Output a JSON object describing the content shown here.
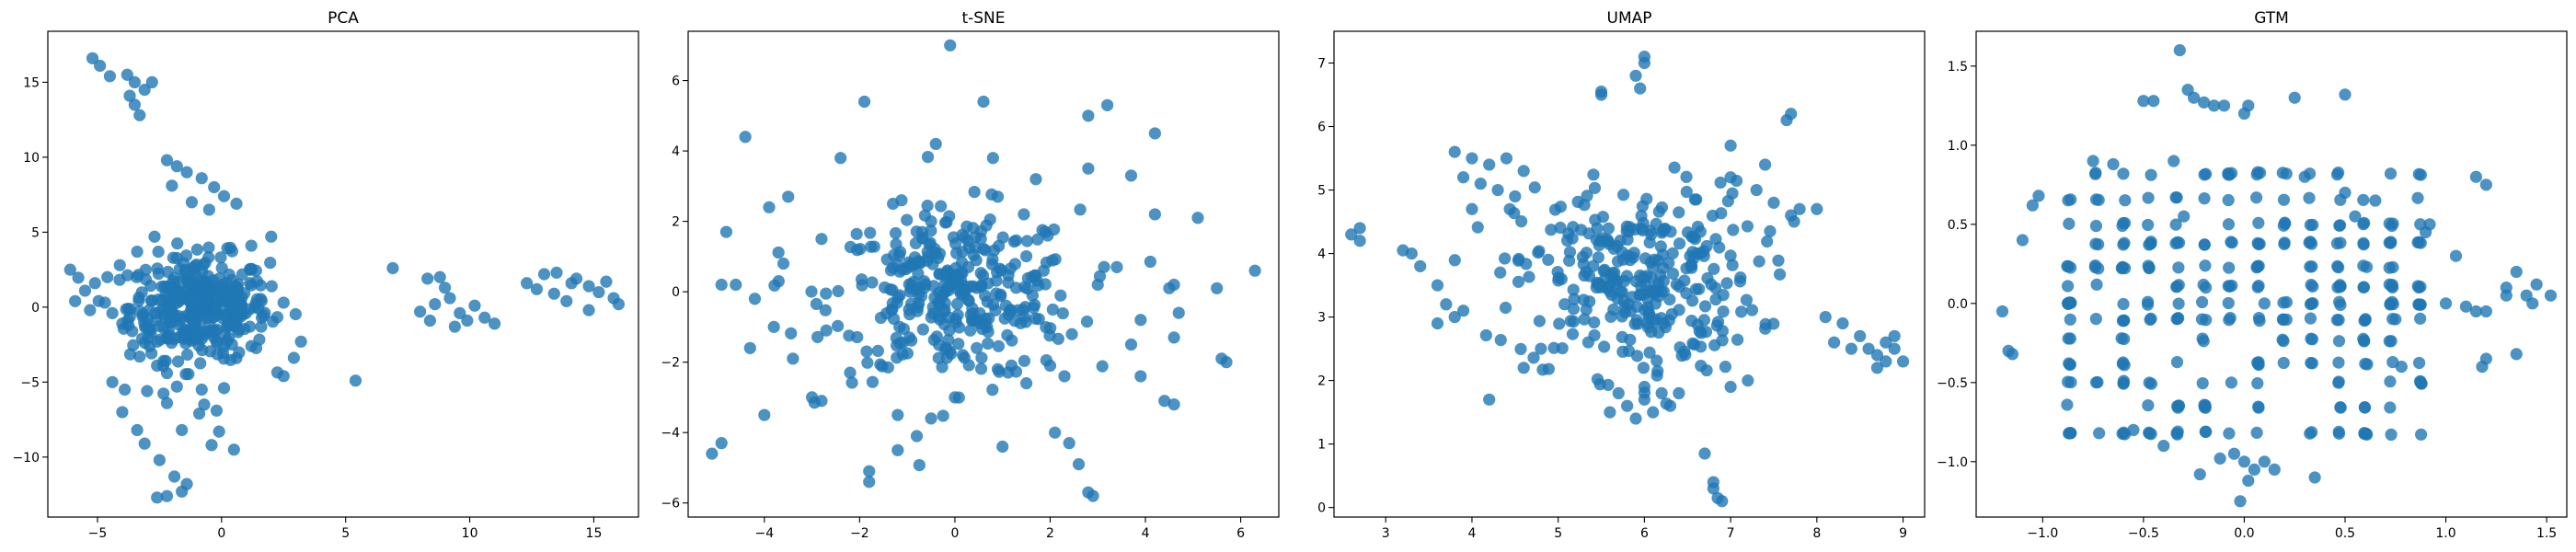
{
  "figure": {
    "point_color": "#1f77b4",
    "point_opacity": 0.8
  },
  "chart_data": [
    {
      "type": "scatter",
      "title": "PCA",
      "xlim": [
        -7,
        16.8
      ],
      "ylim": [
        -14,
        18.4
      ],
      "xticks": [
        -5,
        0,
        5,
        10,
        15
      ],
      "yticks": [
        -10,
        -5,
        0,
        5,
        10,
        15
      ],
      "points": [
        [
          -5.2,
          16.6
        ],
        [
          -4.9,
          16.1
        ],
        [
          -4.5,
          15.4
        ],
        [
          -3.8,
          15.5
        ],
        [
          -3.5,
          15.0
        ],
        [
          -2.8,
          15.0
        ],
        [
          -3.1,
          14.5
        ],
        [
          -3.7,
          14.1
        ],
        [
          -3.5,
          13.5
        ],
        [
          -3.3,
          12.8
        ],
        [
          -2.2,
          9.8
        ],
        [
          -1.8,
          9.4
        ],
        [
          -1.4,
          9.0
        ],
        [
          -0.8,
          8.6
        ],
        [
          -0.3,
          8.0
        ],
        [
          0.1,
          7.4
        ],
        [
          0.6,
          6.9
        ],
        [
          -2.0,
          8.1
        ],
        [
          -1.2,
          7.0
        ],
        [
          -0.5,
          6.5
        ],
        [
          1.2,
          4.1
        ],
        [
          2.0,
          4.7
        ],
        [
          -2.7,
          4.7
        ],
        [
          -3.4,
          3.7
        ],
        [
          -4.1,
          2.8
        ],
        [
          -4.6,
          2.0
        ],
        [
          -5.1,
          1.6
        ],
        [
          -5.5,
          1.1
        ],
        [
          -6.1,
          2.5
        ],
        [
          -5.9,
          0.4
        ],
        [
          -5.3,
          -0.2
        ],
        [
          -4.7,
          0.3
        ],
        [
          -4.4,
          -0.4
        ],
        [
          -4.0,
          -1.1
        ],
        [
          -3.6,
          -1.6
        ],
        [
          -3.2,
          -2.1
        ],
        [
          -2.9,
          -2.6
        ],
        [
          -3.3,
          -3.3
        ],
        [
          -2.6,
          -3.9
        ],
        [
          -2.2,
          -4.4
        ],
        [
          -3.0,
          -5.6
        ],
        [
          -3.9,
          -5.5
        ],
        [
          -4.4,
          -5.0
        ],
        [
          -4.0,
          -7.0
        ],
        [
          -3.4,
          -8.2
        ],
        [
          -3.1,
          -9.1
        ],
        [
          -2.5,
          -10.2
        ],
        [
          -1.9,
          -11.3
        ],
        [
          -1.4,
          -11.8
        ],
        [
          -2.2,
          -12.6
        ],
        [
          -2.6,
          -12.7
        ],
        [
          -1.6,
          -12.3
        ],
        [
          -1.6,
          -8.2
        ],
        [
          -0.9,
          -7.1
        ],
        [
          -0.4,
          -9.2
        ],
        [
          0.5,
          -9.5
        ],
        [
          -0.1,
          -8.3
        ],
        [
          -0.7,
          -6.5
        ],
        [
          -0.2,
          -6.9
        ],
        [
          0.1,
          -5.4
        ],
        [
          -0.8,
          -5.5
        ],
        [
          -1.8,
          -5.3
        ],
        [
          -2.2,
          -6.4
        ],
        [
          0.6,
          -3.4
        ],
        [
          1.2,
          -2.6
        ],
        [
          1.6,
          -1.3
        ],
        [
          2.5,
          0.3
        ],
        [
          3.2,
          -2.3
        ],
        [
          2.5,
          -4.6
        ],
        [
          5.4,
          -4.9
        ],
        [
          6.9,
          2.6
        ],
        [
          8.3,
          1.9
        ],
        [
          8.8,
          2.0
        ],
        [
          9.0,
          1.3
        ],
        [
          9.2,
          0.6
        ],
        [
          8.6,
          0.2
        ],
        [
          8.0,
          -0.3
        ],
        [
          8.4,
          -0.9
        ],
        [
          9.6,
          -0.4
        ],
        [
          10.2,
          0.1
        ],
        [
          9.9,
          -0.9
        ],
        [
          10.6,
          -0.7
        ],
        [
          11.0,
          -1.1
        ],
        [
          9.4,
          -1.3
        ],
        [
          12.3,
          1.6
        ],
        [
          13.0,
          2.2
        ],
        [
          13.5,
          2.3
        ],
        [
          14.3,
          1.9
        ],
        [
          14.8,
          1.4
        ],
        [
          15.2,
          1.0
        ],
        [
          15.8,
          0.6
        ],
        [
          16.0,
          0.2
        ],
        [
          13.9,
          0.4
        ],
        [
          13.4,
          0.9
        ],
        [
          14.8,
          -0.2
        ],
        [
          12.7,
          1.2
        ],
        [
          14.1,
          1.6
        ],
        [
          15.5,
          1.7
        ]
      ],
      "cluster": {
        "center": [
          -0.9,
          0.0
        ],
        "spread": [
          1.4,
          1.7
        ],
        "count": 360
      }
    },
    {
      "type": "scatter",
      "title": "t-SNE",
      "xlim": [
        -5.6,
        6.8
      ],
      "ylim": [
        -6.4,
        7.4
      ],
      "xticks": [
        -4,
        -2,
        0,
        2,
        4,
        6
      ],
      "yticks": [
        -6,
        -4,
        -2,
        0,
        2,
        4,
        6
      ],
      "points": [
        [
          -0.1,
          7.0
        ],
        [
          0.6,
          5.4
        ],
        [
          -1.9,
          5.4
        ],
        [
          2.8,
          5.0
        ],
        [
          3.2,
          5.3
        ],
        [
          4.2,
          4.5
        ],
        [
          -4.4,
          4.4
        ],
        [
          -0.4,
          4.2
        ],
        [
          0.8,
          3.8
        ],
        [
          -2.4,
          3.8
        ],
        [
          1.7,
          3.2
        ],
        [
          2.8,
          3.5
        ],
        [
          3.7,
          3.3
        ],
        [
          -3.5,
          2.7
        ],
        [
          -3.9,
          2.4
        ],
        [
          4.2,
          2.2
        ],
        [
          5.1,
          2.1
        ],
        [
          -4.8,
          1.7
        ],
        [
          3.0,
          0.2
        ],
        [
          3.4,
          0.7
        ],
        [
          4.5,
          0.1
        ],
        [
          5.5,
          0.1
        ],
        [
          6.3,
          0.6
        ],
        [
          4.7,
          -0.6
        ],
        [
          3.9,
          -0.8
        ],
        [
          3.7,
          -1.5
        ],
        [
          4.6,
          -1.3
        ],
        [
          5.6,
          -1.9
        ],
        [
          5.7,
          -2.0
        ],
        [
          4.4,
          -3.1
        ],
        [
          4.6,
          -3.2
        ],
        [
          2.3,
          -2.4
        ],
        [
          1.5,
          -2.6
        ],
        [
          2.1,
          -4.0
        ],
        [
          2.4,
          -4.3
        ],
        [
          2.6,
          -4.9
        ],
        [
          2.8,
          -5.7
        ],
        [
          2.9,
          -5.8
        ],
        [
          1.0,
          -4.4
        ],
        [
          -0.5,
          -3.6
        ],
        [
          -0.8,
          -4.1
        ],
        [
          -1.2,
          -4.5
        ],
        [
          -1.8,
          -5.1
        ],
        [
          -1.8,
          -5.4
        ],
        [
          -2.8,
          -3.1
        ],
        [
          -3.0,
          -3.0
        ],
        [
          -4.0,
          -3.5
        ],
        [
          -4.9,
          -4.3
        ],
        [
          -5.1,
          -4.6
        ],
        [
          -4.3,
          -1.6
        ],
        [
          -3.4,
          -1.9
        ],
        [
          -3.7,
          0.3
        ],
        [
          -4.9,
          0.2
        ],
        [
          -4.2,
          -0.2
        ],
        [
          -3.6,
          0.8
        ],
        [
          -2.7,
          -1.1
        ],
        [
          -2.2,
          -2.3
        ],
        [
          -1.2,
          -3.5
        ],
        [
          0.0,
          -3.0
        ],
        [
          0.9,
          -2.2
        ],
        [
          -1.3,
          2.5
        ],
        [
          0.9,
          2.7
        ],
        [
          -2.8,
          1.5
        ],
        [
          1.9,
          1.7
        ],
        [
          -0.5,
          2.0
        ],
        [
          4.6,
          0.2
        ],
        [
          -4.6,
          0.2
        ],
        [
          2.0,
          -2.1
        ],
        [
          3.9,
          -2.4
        ],
        [
          -3.8,
          -1.0
        ]
      ],
      "cluster": {
        "center": [
          0.0,
          -0.1
        ],
        "spread": [
          1.3,
          1.2
        ],
        "count": 330
      }
    },
    {
      "type": "scatter",
      "title": "UMAP",
      "xlim": [
        2.4,
        9.25
      ],
      "ylim": [
        -0.15,
        7.5
      ],
      "xticks": [
        3,
        4,
        5,
        6,
        7,
        8,
        9
      ],
      "yticks": [
        0,
        1,
        2,
        3,
        4,
        5,
        6,
        7
      ],
      "points": [
        [
          6.0,
          7.1
        ],
        [
          6.0,
          7.0
        ],
        [
          5.9,
          6.8
        ],
        [
          5.95,
          6.6
        ],
        [
          5.5,
          6.5
        ],
        [
          5.5,
          6.55
        ],
        [
          7.7,
          6.2
        ],
        [
          7.65,
          6.1
        ],
        [
          3.8,
          5.6
        ],
        [
          4.0,
          5.5
        ],
        [
          4.2,
          5.4
        ],
        [
          4.4,
          5.5
        ],
        [
          3.9,
          5.2
        ],
        [
          4.1,
          5.1
        ],
        [
          4.3,
          5.0
        ],
        [
          4.5,
          4.9
        ],
        [
          4.0,
          4.7
        ],
        [
          4.6,
          5.3
        ],
        [
          7.0,
          5.2
        ],
        [
          7.3,
          5.0
        ],
        [
          7.5,
          4.8
        ],
        [
          7.7,
          4.6
        ],
        [
          7.8,
          4.7
        ],
        [
          8.0,
          4.7
        ],
        [
          7.4,
          5.4
        ],
        [
          7.0,
          5.7
        ],
        [
          2.7,
          4.4
        ],
        [
          2.6,
          4.3
        ],
        [
          2.7,
          4.2
        ],
        [
          3.2,
          4.05
        ],
        [
          3.3,
          4.0
        ],
        [
          3.6,
          3.5
        ],
        [
          3.7,
          3.2
        ],
        [
          3.8,
          3.0
        ],
        [
          3.9,
          3.1
        ],
        [
          3.6,
          2.9
        ],
        [
          8.1,
          3.0
        ],
        [
          8.3,
          2.9
        ],
        [
          8.5,
          2.7
        ],
        [
          8.6,
          2.5
        ],
        [
          8.7,
          2.4
        ],
        [
          8.8,
          2.6
        ],
        [
          8.9,
          2.5
        ],
        [
          9.0,
          2.3
        ],
        [
          8.8,
          2.3
        ],
        [
          8.7,
          2.2
        ],
        [
          8.4,
          2.5
        ],
        [
          8.9,
          2.7
        ],
        [
          8.2,
          2.6
        ],
        [
          5.6,
          1.5
        ],
        [
          5.8,
          1.6
        ],
        [
          6.0,
          1.7
        ],
        [
          6.2,
          1.8
        ],
        [
          5.9,
          1.4
        ],
        [
          6.1,
          1.5
        ],
        [
          6.3,
          1.6
        ],
        [
          6.0,
          1.9
        ],
        [
          5.7,
          1.8
        ],
        [
          6.4,
          1.8
        ],
        [
          4.2,
          1.7
        ],
        [
          6.7,
          0.85
        ],
        [
          6.8,
          0.4
        ],
        [
          6.8,
          0.3
        ],
        [
          6.85,
          0.15
        ],
        [
          6.9,
          0.1
        ],
        [
          4.6,
          2.2
        ],
        [
          4.8,
          2.5
        ],
        [
          7.2,
          2.0
        ],
        [
          7.0,
          1.9
        ],
        [
          3.4,
          3.8
        ]
      ],
      "cluster": {
        "center": [
          5.9,
          3.6
        ],
        "spread": [
          0.7,
          0.75
        ],
        "count": 310
      }
    },
    {
      "type": "scatter",
      "title": "GTM",
      "xlim": [
        -1.33,
        1.6
      ],
      "ylim": [
        -1.35,
        1.72
      ],
      "xticks": [
        -1.0,
        -0.5,
        0.0,
        0.5,
        1.0,
        1.5
      ],
      "yticks": [
        -1.0,
        -0.5,
        0.0,
        0.5,
        1.0,
        1.5
      ],
      "grid": {
        "xs": [
          -0.87,
          -0.73,
          -0.6,
          -0.47,
          -0.33,
          -0.2,
          -0.07,
          0.07,
          0.2,
          0.33,
          0.47,
          0.6,
          0.73,
          0.87
        ],
        "ys": [
          -0.82,
          -0.65,
          -0.5,
          -0.38,
          -0.23,
          -0.1,
          0.0,
          0.11,
          0.23,
          0.38,
          0.5,
          0.66,
          0.82
        ],
        "count": 300
      },
      "points": [
        [
          -0.32,
          1.6
        ],
        [
          -0.28,
          1.35
        ],
        [
          -0.25,
          1.3
        ],
        [
          -0.2,
          1.27
        ],
        [
          -0.15,
          1.25
        ],
        [
          -0.1,
          1.25
        ],
        [
          0.0,
          1.2
        ],
        [
          0.02,
          1.25
        ],
        [
          0.25,
          1.3
        ],
        [
          0.5,
          1.32
        ],
        [
          -0.45,
          1.28
        ],
        [
          -0.5,
          1.28
        ],
        [
          -1.1,
          0.4
        ],
        [
          -1.05,
          0.62
        ],
        [
          -1.02,
          0.68
        ],
        [
          -0.75,
          0.9
        ],
        [
          -0.65,
          0.88
        ],
        [
          -0.35,
          0.9
        ],
        [
          -1.2,
          -0.05
        ],
        [
          -1.17,
          -0.3
        ],
        [
          -1.15,
          -0.32
        ],
        [
          -0.22,
          -1.08
        ],
        [
          -0.12,
          -0.98
        ],
        [
          -0.05,
          -0.95
        ],
        [
          0.0,
          -1.0
        ],
        [
          0.05,
          -1.05
        ],
        [
          0.1,
          -1.0
        ],
        [
          0.15,
          -1.05
        ],
        [
          -0.02,
          -1.25
        ],
        [
          0.02,
          -1.12
        ],
        [
          0.9,
          0.45
        ],
        [
          0.92,
          0.5
        ],
        [
          1.15,
          0.8
        ],
        [
          1.2,
          0.75
        ],
        [
          1.05,
          0.3
        ],
        [
          1.0,
          -0.0
        ],
        [
          1.1,
          -0.02
        ],
        [
          1.15,
          -0.05
        ],
        [
          1.2,
          -0.05
        ],
        [
          1.3,
          0.05
        ],
        [
          1.4,
          0.05
        ],
        [
          1.43,
          0.0
        ],
        [
          1.35,
          0.2
        ],
        [
          1.3,
          0.1
        ],
        [
          1.45,
          0.12
        ],
        [
          1.52,
          0.05
        ],
        [
          1.2,
          -0.35
        ],
        [
          1.18,
          -0.4
        ],
        [
          1.35,
          -0.32
        ],
        [
          0.75,
          -0.1
        ],
        [
          0.78,
          -0.4
        ],
        [
          0.65,
          0.65
        ],
        [
          0.5,
          0.7
        ],
        [
          -0.4,
          -0.9
        ],
        [
          -0.55,
          -0.8
        ],
        [
          0.35,
          -1.1
        ],
        [
          0.1,
          0.0
        ],
        [
          -0.3,
          0.55
        ],
        [
          0.3,
          0.8
        ],
        [
          0.55,
          0.55
        ]
      ]
    }
  ]
}
